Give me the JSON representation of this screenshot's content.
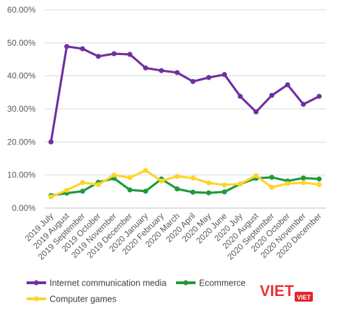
{
  "chart_data": {
    "type": "line",
    "title": "",
    "xlabel": "",
    "ylabel": "",
    "ylim": [
      0,
      60
    ],
    "yticks": [
      0,
      10,
      20,
      30,
      40,
      50,
      60
    ],
    "ytick_labels": [
      "0.00%",
      "10.00%",
      "20.00%",
      "30.00%",
      "40.00%",
      "50.00%",
      "60.00%"
    ],
    "grid": "horizontal",
    "legend_position": "bottom",
    "categories": [
      "2019 July",
      "2019 August",
      "2019 September",
      "2019 October",
      "2019 November",
      "2019 December",
      "2020 January",
      "2020 February",
      "2020 March",
      "2020 April",
      "2020 May",
      "2020 June",
      "2020 July",
      "2020 August",
      "2020 September",
      "2020 October",
      "2020 November",
      "2020 December"
    ],
    "series": [
      {
        "name": "Internet communication media",
        "color": "#7030a0",
        "values": [
          20.0,
          48.9,
          48.2,
          45.9,
          46.7,
          46.5,
          42.4,
          41.6,
          41.0,
          38.3,
          39.5,
          40.4,
          33.8,
          29.1,
          34.1,
          37.3,
          31.4,
          33.8
        ]
      },
      {
        "name": "Ecommerce",
        "color": "#1e9a3c",
        "values": [
          3.8,
          4.5,
          5.1,
          7.8,
          9.0,
          5.5,
          5.1,
          8.8,
          5.8,
          4.8,
          4.6,
          4.9,
          7.3,
          9.0,
          9.3,
          8.2,
          9.1,
          8.8
        ]
      },
      {
        "name": "Computer games",
        "color": "#ffd42a",
        "values": [
          3.4,
          5.4,
          7.7,
          7.1,
          10.0,
          9.2,
          11.4,
          8.2,
          9.6,
          9.1,
          7.6,
          7.0,
          7.3,
          9.8,
          6.3,
          7.4,
          7.7,
          7.1
        ]
      }
    ]
  },
  "watermark": {
    "main": "VIET",
    "small": "VIET",
    "color": "#e3242b"
  }
}
